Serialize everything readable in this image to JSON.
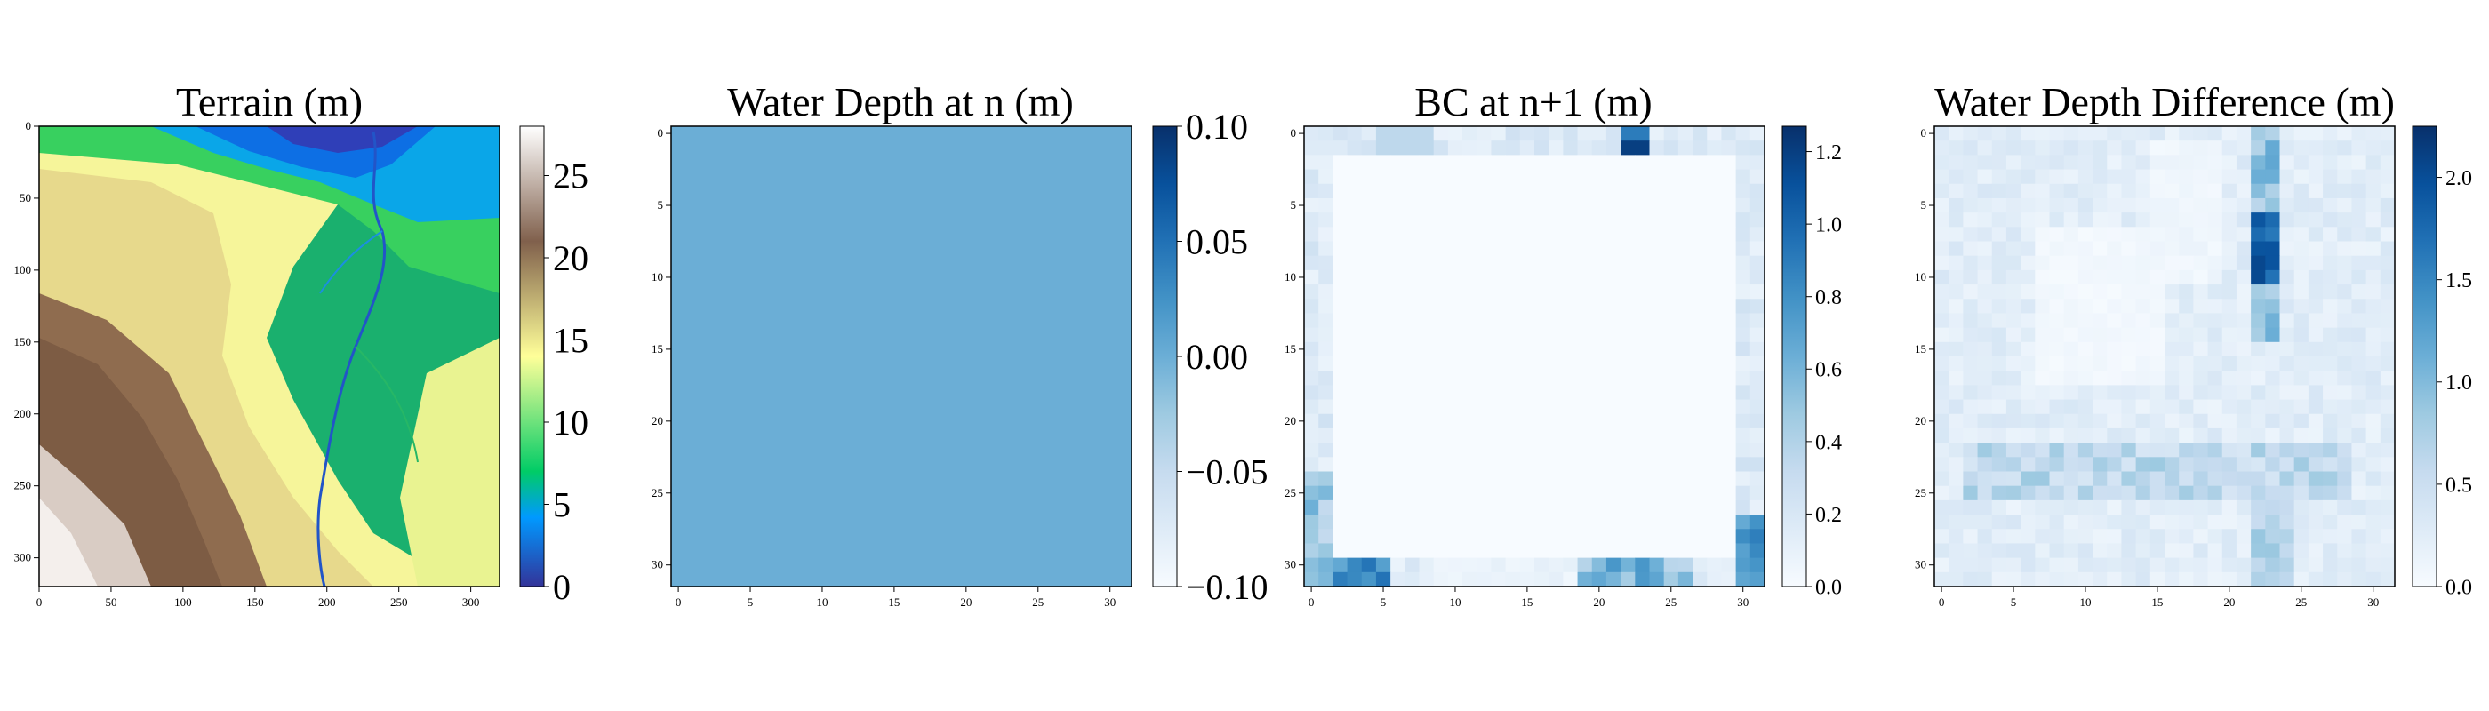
{
  "chart_data": [
    {
      "type": "heatmap",
      "title": "Terrain (m)",
      "xlim": [
        0,
        320
      ],
      "ylim": [
        0,
        320
      ],
      "xticks": [
        "0",
        "50",
        "100",
        "150",
        "200",
        "250",
        "300"
      ],
      "yticks": [
        "0",
        "50",
        "100",
        "150",
        "200",
        "250",
        "300"
      ],
      "colormap": "terrain",
      "colorbar": {
        "range": [
          0,
          28
        ],
        "ticks": [
          "0",
          "5",
          "10",
          "15",
          "20",
          "25"
        ]
      }
    },
    {
      "type": "heatmap",
      "title": "Water Depth at n (m)",
      "xlim": [
        0,
        31
      ],
      "ylim": [
        0,
        31
      ],
      "xticks": [
        "0",
        "5",
        "10",
        "15",
        "20",
        "25",
        "30"
      ],
      "yticks": [
        "0",
        "5",
        "10",
        "15",
        "20",
        "25",
        "30"
      ],
      "colormap": "Blues",
      "uniform_value": 0.0,
      "colorbar": {
        "range": [
          -0.1,
          0.1
        ],
        "ticks": [
          "0.10",
          "0.05",
          "0.00",
          "−0.05",
          "−0.10"
        ]
      }
    },
    {
      "type": "heatmap",
      "title": "BC at n+1 (m)",
      "xlim": [
        0,
        31
      ],
      "ylim": [
        0,
        31
      ],
      "xticks": [
        "0",
        "5",
        "10",
        "15",
        "20",
        "25",
        "30"
      ],
      "yticks": [
        "0",
        "5",
        "10",
        "15",
        "20",
        "25",
        "30"
      ],
      "colormap": "Blues",
      "colorbar": {
        "range": [
          0,
          1.27
        ],
        "ticks": [
          "0.0",
          "0.2",
          "0.4",
          "0.6",
          "0.8",
          "1.0",
          "1.2"
        ]
      }
    },
    {
      "type": "heatmap",
      "title": "Water Depth Difference (m)",
      "xlim": [
        0,
        31
      ],
      "ylim": [
        0,
        31
      ],
      "xticks": [
        "0",
        "5",
        "10",
        "15",
        "20",
        "25",
        "30"
      ],
      "yticks": [
        "0",
        "5",
        "10",
        "15",
        "20",
        "25",
        "30"
      ],
      "colormap": "Blues",
      "colorbar": {
        "range": [
          0,
          2.25
        ],
        "ticks": [
          "0.0",
          "0.5",
          "1.0",
          "1.5",
          "2.0"
        ]
      }
    }
  ]
}
